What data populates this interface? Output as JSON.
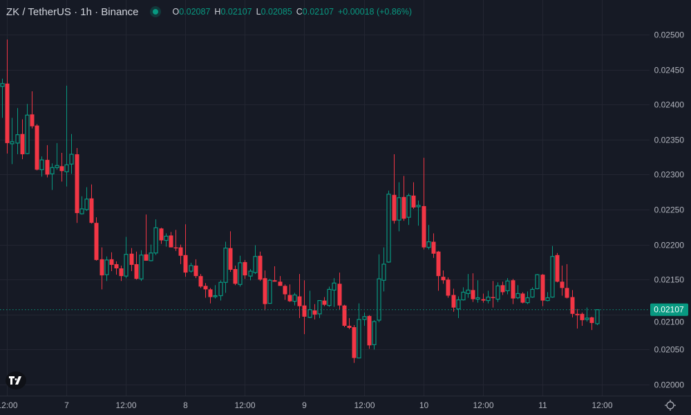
{
  "header": {
    "symbol": "ZK / TetherUS · 1h · Binance",
    "status_color": "#089981",
    "open_label": "O",
    "open": "0.02087",
    "high_label": "H",
    "high": "0.02107",
    "low_label": "L",
    "low": "0.02085",
    "close_label": "C",
    "close": "0.02107",
    "change": "+0.00018 (+0.86%)"
  },
  "icons": {
    "logo": "tradingview-logo-icon",
    "settings": "gear-icon"
  },
  "chart_data": {
    "type": "candlestick",
    "title": "",
    "interval": "1h",
    "colors": {
      "up": "#089981",
      "down": "#F23645",
      "background": "#161A25",
      "grid": "#232632"
    },
    "grid": true,
    "ylim": [
      0.01985,
      0.0255
    ],
    "y_ticks": [
      "0.02500",
      "0.02450",
      "0.02400",
      "0.02350",
      "0.02300",
      "0.02250",
      "0.02200",
      "0.02150",
      "0.02100",
      "0.02050",
      "0.02000"
    ],
    "x_ticks": [
      "12:00",
      "7",
      "12:00",
      "8",
      "12:00",
      "9",
      "12:00",
      "10",
      "12:00",
      "11",
      "12:00"
    ],
    "last_price": "0.02107",
    "last_price_value": 0.02107,
    "ohlc": [
      [
        0.02426,
        0.02437,
        0.02381,
        0.0243
      ],
      [
        0.0243,
        0.02493,
        0.0233,
        0.02345
      ],
      [
        0.02344,
        0.02381,
        0.02315,
        0.02347
      ],
      [
        0.02345,
        0.02395,
        0.02329,
        0.02357
      ],
      [
        0.02358,
        0.02379,
        0.02322,
        0.02329
      ],
      [
        0.0233,
        0.02401,
        0.02329,
        0.02385
      ],
      [
        0.02386,
        0.02419,
        0.02366,
        0.02369
      ],
      [
        0.0237,
        0.02372,
        0.02306,
        0.02307
      ],
      [
        0.02307,
        0.02326,
        0.02297,
        0.02321
      ],
      [
        0.02321,
        0.02342,
        0.02296,
        0.023
      ],
      [
        0.02301,
        0.02316,
        0.02278,
        0.0231
      ],
      [
        0.0231,
        0.02345,
        0.02307,
        0.02313
      ],
      [
        0.02312,
        0.02331,
        0.0229,
        0.02305
      ],
      [
        0.02304,
        0.02427,
        0.02283,
        0.02314
      ],
      [
        0.02315,
        0.02358,
        0.02301,
        0.02329
      ],
      [
        0.02329,
        0.02338,
        0.02231,
        0.02245
      ],
      [
        0.02244,
        0.02269,
        0.02243,
        0.02251
      ],
      [
        0.0225,
        0.02282,
        0.02248,
        0.02265
      ],
      [
        0.02266,
        0.02286,
        0.0223,
        0.02231
      ],
      [
        0.02231,
        0.02239,
        0.02177,
        0.02178
      ],
      [
        0.02179,
        0.02196,
        0.02136,
        0.02156
      ],
      [
        0.02157,
        0.02183,
        0.02148,
        0.02178
      ],
      [
        0.02179,
        0.02189,
        0.02162,
        0.02171
      ],
      [
        0.02172,
        0.02176,
        0.02157,
        0.02166
      ],
      [
        0.02166,
        0.0217,
        0.02148,
        0.02155
      ],
      [
        0.02155,
        0.02211,
        0.02152,
        0.02186
      ],
      [
        0.02187,
        0.02195,
        0.02162,
        0.02171
      ],
      [
        0.02172,
        0.0219,
        0.0215,
        0.02151
      ],
      [
        0.02151,
        0.02192,
        0.02148,
        0.02185
      ],
      [
        0.02186,
        0.02243,
        0.02177,
        0.02177
      ],
      [
        0.02177,
        0.022,
        0.02176,
        0.02188
      ],
      [
        0.02188,
        0.02236,
        0.02185,
        0.02224
      ],
      [
        0.02223,
        0.02224,
        0.02201,
        0.02206
      ],
      [
        0.02206,
        0.02216,
        0.02197,
        0.02212
      ],
      [
        0.02213,
        0.02218,
        0.02196,
        0.02196
      ],
      [
        0.02196,
        0.02221,
        0.02191,
        0.02195
      ],
      [
        0.02196,
        0.022,
        0.02172,
        0.02184
      ],
      [
        0.02185,
        0.02229,
        0.02154,
        0.0216
      ],
      [
        0.02162,
        0.02174,
        0.0216,
        0.0217
      ],
      [
        0.0217,
        0.02179,
        0.02152,
        0.02155
      ],
      [
        0.02155,
        0.02158,
        0.02138,
        0.0214
      ],
      [
        0.02141,
        0.02145,
        0.02124,
        0.02136
      ],
      [
        0.02136,
        0.02138,
        0.02116,
        0.02125
      ],
      [
        0.02126,
        0.02142,
        0.02123,
        0.02127
      ],
      [
        0.02127,
        0.02149,
        0.0212,
        0.02146
      ],
      [
        0.02146,
        0.02204,
        0.02131,
        0.02195
      ],
      [
        0.02195,
        0.02219,
        0.02161,
        0.02164
      ],
      [
        0.02165,
        0.0217,
        0.02142,
        0.02144
      ],
      [
        0.02143,
        0.02184,
        0.0214,
        0.02174
      ],
      [
        0.02175,
        0.02178,
        0.02151,
        0.02156
      ],
      [
        0.02155,
        0.02165,
        0.02149,
        0.02162
      ],
      [
        0.0216,
        0.02199,
        0.02158,
        0.02183
      ],
      [
        0.02184,
        0.0219,
        0.02148,
        0.0215
      ],
      [
        0.02152,
        0.02163,
        0.02106,
        0.02115
      ],
      [
        0.02116,
        0.02151,
        0.02116,
        0.02149
      ],
      [
        0.02149,
        0.02169,
        0.02147,
        0.02147
      ],
      [
        0.02147,
        0.02155,
        0.02141,
        0.02141
      ],
      [
        0.02141,
        0.02143,
        0.02121,
        0.02129
      ],
      [
        0.02128,
        0.02143,
        0.02118,
        0.02119
      ],
      [
        0.02119,
        0.02131,
        0.02113,
        0.02128
      ],
      [
        0.02126,
        0.02158,
        0.02095,
        0.02112
      ],
      [
        0.02113,
        0.02149,
        0.02072,
        0.02097
      ],
      [
        0.02096,
        0.02134,
        0.02095,
        0.02107
      ],
      [
        0.02106,
        0.02115,
        0.02093,
        0.021
      ],
      [
        0.02101,
        0.0212,
        0.02095,
        0.0212
      ],
      [
        0.0212,
        0.02125,
        0.02112,
        0.02114
      ],
      [
        0.02113,
        0.0214,
        0.02111,
        0.02136
      ],
      [
        0.02135,
        0.02152,
        0.02111,
        0.02145
      ],
      [
        0.02144,
        0.0216,
        0.02107,
        0.02113
      ],
      [
        0.02113,
        0.02114,
        0.02082,
        0.02084
      ],
      [
        0.02084,
        0.02095,
        0.02079,
        0.02081
      ],
      [
        0.02082,
        0.02085,
        0.02031,
        0.02038
      ],
      [
        0.02038,
        0.02116,
        0.02038,
        0.02093
      ],
      [
        0.02093,
        0.02103,
        0.02084,
        0.02097
      ],
      [
        0.02098,
        0.02099,
        0.02051,
        0.02056
      ],
      [
        0.02057,
        0.02092,
        0.0205,
        0.0209
      ],
      [
        0.02092,
        0.02186,
        0.02089,
        0.02151
      ],
      [
        0.02149,
        0.02196,
        0.02133,
        0.02172
      ],
      [
        0.02175,
        0.02277,
        0.02174,
        0.02272
      ],
      [
        0.02271,
        0.02329,
        0.0223,
        0.02234
      ],
      [
        0.02235,
        0.02289,
        0.02219,
        0.02267
      ],
      [
        0.02268,
        0.02298,
        0.02234,
        0.02237
      ],
      [
        0.02239,
        0.02273,
        0.02228,
        0.0227
      ],
      [
        0.0227,
        0.02289,
        0.02251,
        0.02253
      ],
      [
        0.02254,
        0.02263,
        0.02227,
        0.02256
      ],
      [
        0.02255,
        0.02324,
        0.02193,
        0.02196
      ],
      [
        0.02196,
        0.02228,
        0.02193,
        0.02204
      ],
      [
        0.02204,
        0.02216,
        0.02181,
        0.02187
      ],
      [
        0.0219,
        0.02191,
        0.02134,
        0.02155
      ],
      [
        0.02154,
        0.02163,
        0.02144,
        0.02149
      ],
      [
        0.0215,
        0.02153,
        0.02124,
        0.02127
      ],
      [
        0.02128,
        0.02137,
        0.02104,
        0.0211
      ],
      [
        0.02108,
        0.02126,
        0.02095,
        0.02121
      ],
      [
        0.02121,
        0.02139,
        0.0212,
        0.02132
      ],
      [
        0.0213,
        0.02158,
        0.02124,
        0.02135
      ],
      [
        0.02135,
        0.02159,
        0.02118,
        0.02122
      ],
      [
        0.02122,
        0.02149,
        0.02117,
        0.02124
      ],
      [
        0.02122,
        0.0213,
        0.02117,
        0.0212
      ],
      [
        0.0212,
        0.02134,
        0.02116,
        0.02125
      ],
      [
        0.02125,
        0.02148,
        0.0211,
        0.02124
      ],
      [
        0.02122,
        0.02146,
        0.02118,
        0.02141
      ],
      [
        0.02142,
        0.02147,
        0.02128,
        0.02132
      ],
      [
        0.02134,
        0.02152,
        0.02129,
        0.02148
      ],
      [
        0.02149,
        0.02151,
        0.02115,
        0.02123
      ],
      [
        0.02124,
        0.02142,
        0.02122,
        0.0213
      ],
      [
        0.0213,
        0.02132,
        0.02116,
        0.02117
      ],
      [
        0.02117,
        0.02133,
        0.02115,
        0.02124
      ],
      [
        0.02125,
        0.02139,
        0.02124,
        0.02136
      ],
      [
        0.02137,
        0.02158,
        0.02136,
        0.02157
      ],
      [
        0.02157,
        0.02158,
        0.02112,
        0.0212
      ],
      [
        0.0212,
        0.02132,
        0.02119,
        0.02124
      ],
      [
        0.02125,
        0.02198,
        0.02124,
        0.02183
      ],
      [
        0.02185,
        0.02188,
        0.02146,
        0.02147
      ],
      [
        0.02147,
        0.0217,
        0.02127,
        0.02138
      ],
      [
        0.02138,
        0.02172,
        0.02123,
        0.02124
      ],
      [
        0.02125,
        0.02135,
        0.02096,
        0.02101
      ],
      [
        0.02101,
        0.02108,
        0.0208,
        0.02099
      ],
      [
        0.02101,
        0.02103,
        0.02084,
        0.02092
      ],
      [
        0.02093,
        0.0211,
        0.0209,
        0.02095
      ],
      [
        0.02096,
        0.02097,
        0.02078,
        0.02088
      ],
      [
        0.02087,
        0.02107,
        0.02085,
        0.02107
      ]
    ]
  }
}
